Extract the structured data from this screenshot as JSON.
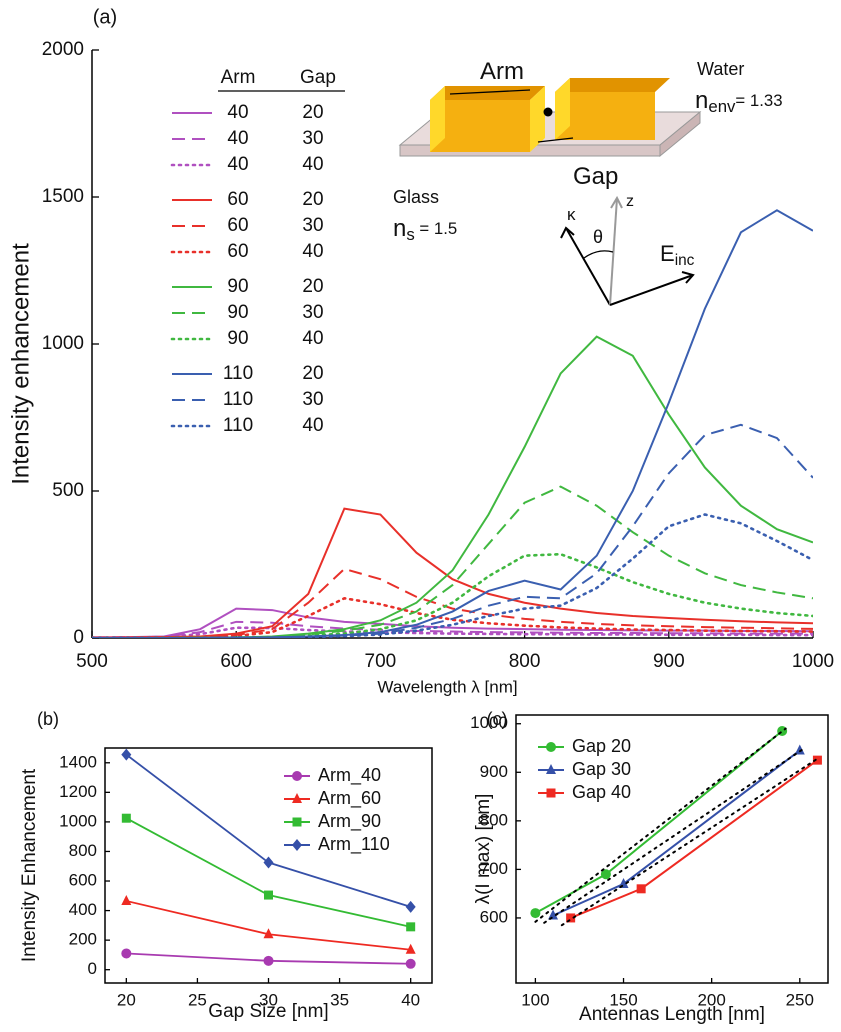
{
  "chart_data": [
    {
      "type": "line",
      "label": "(a)",
      "xlabel": "Wavelength λ [nm]",
      "ylabel": "Intensity enhancement",
      "x": [
        500,
        525,
        550,
        575,
        600,
        625,
        650,
        675,
        700,
        725,
        750,
        775,
        800,
        825,
        850,
        875,
        900,
        925,
        950,
        975,
        1000
      ],
      "xlim": [
        500,
        1000
      ],
      "xticks": [
        500,
        600,
        700,
        800,
        900,
        1000
      ],
      "ylim": [
        0,
        2000
      ],
      "yticks": [
        0,
        500,
        1000,
        1500,
        2000
      ],
      "legend": "upper left",
      "legend_header": [
        "Arm",
        "Gap"
      ],
      "series": [
        {
          "arm": 40,
          "gap": 20,
          "color": "#b050c0",
          "dash": "solid",
          "values": [
            2,
            3,
            5,
            30,
            100,
            95,
            70,
            55,
            48,
            40,
            35,
            32,
            30,
            28,
            27,
            26,
            25,
            25,
            24,
            24,
            23
          ]
        },
        {
          "arm": 40,
          "gap": 30,
          "color": "#b050c0",
          "dash": "dashed",
          "values": [
            2,
            3,
            4,
            20,
            55,
            52,
            40,
            32,
            28,
            24,
            22,
            20,
            19,
            18,
            17,
            17,
            16,
            16,
            15,
            15,
            15
          ]
        },
        {
          "arm": 40,
          "gap": 40,
          "color": "#b050c0",
          "dash": "dotted",
          "values": [
            1,
            2,
            3,
            13,
            35,
            34,
            27,
            22,
            19,
            17,
            15,
            14,
            13,
            13,
            12,
            12,
            11,
            11,
            11,
            10,
            10
          ]
        },
        {
          "arm": 60,
          "gap": 20,
          "color": "#e8302a",
          "dash": "solid",
          "values": [
            1,
            2,
            3,
            5,
            15,
            40,
            150,
            440,
            420,
            290,
            200,
            150,
            120,
            100,
            85,
            75,
            68,
            62,
            57,
            53,
            50
          ]
        },
        {
          "arm": 60,
          "gap": 30,
          "color": "#e8302a",
          "dash": "dashed",
          "values": [
            1,
            1,
            2,
            4,
            10,
            30,
            120,
            235,
            200,
            140,
            100,
            80,
            65,
            55,
            48,
            43,
            40,
            37,
            35,
            33,
            31
          ]
        },
        {
          "arm": 60,
          "gap": 40,
          "color": "#e8302a",
          "dash": "dotted",
          "values": [
            1,
            1,
            2,
            3,
            7,
            20,
            75,
            135,
            115,
            85,
            62,
            50,
            42,
            36,
            32,
            29,
            27,
            25,
            24,
            23,
            22
          ]
        },
        {
          "arm": 90,
          "gap": 20,
          "color": "#40b840",
          "dash": "solid",
          "values": [
            0,
            0,
            0,
            1,
            2,
            5,
            15,
            30,
            60,
            120,
            230,
            420,
            650,
            900,
            1025,
            960,
            760,
            580,
            450,
            370,
            325
          ]
        },
        {
          "arm": 90,
          "gap": 30,
          "color": "#40b840",
          "dash": "dashed",
          "values": [
            0,
            0,
            0,
            1,
            2,
            4,
            12,
            25,
            45,
            90,
            180,
            320,
            460,
            515,
            450,
            360,
            280,
            220,
            180,
            155,
            135
          ]
        },
        {
          "arm": 90,
          "gap": 40,
          "color": "#40b840",
          "dash": "dotted",
          "values": [
            0,
            0,
            0,
            0,
            1,
            3,
            8,
            15,
            30,
            60,
            120,
            210,
            280,
            285,
            240,
            190,
            150,
            120,
            100,
            85,
            75
          ]
        },
        {
          "arm": 110,
          "gap": 20,
          "color": "#3a5fb0",
          "dash": "solid",
          "values": [
            0,
            0,
            0,
            0,
            1,
            2,
            5,
            10,
            20,
            45,
            90,
            160,
            195,
            165,
            280,
            500,
            800,
            1120,
            1380,
            1455,
            1385
          ]
        },
        {
          "arm": 110,
          "gap": 30,
          "color": "#3a5fb0",
          "dash": "dashed",
          "values": [
            0,
            0,
            0,
            0,
            1,
            2,
            4,
            8,
            15,
            35,
            65,
            110,
            140,
            135,
            220,
            380,
            560,
            690,
            725,
            680,
            545
          ]
        },
        {
          "arm": 110,
          "gap": 40,
          "color": "#3a5fb0",
          "dash": "dotted",
          "values": [
            0,
            0,
            0,
            0,
            1,
            1,
            3,
            6,
            12,
            25,
            45,
            75,
            100,
            110,
            170,
            270,
            380,
            420,
            390,
            330,
            265
          ]
        }
      ],
      "annotations": [
        {
          "text": "Arm"
        },
        {
          "text": "Gap"
        },
        {
          "text": "Water"
        },
        {
          "text": "n",
          "sub": "env",
          "after": "= 1.33"
        },
        {
          "text": "Glass"
        },
        {
          "text": "n",
          "sub": "s",
          "after": " = 1.5"
        },
        {
          "text": "κ"
        },
        {
          "text": "θ"
        },
        {
          "text": "z"
        },
        {
          "text": "E",
          "sub": "inc"
        }
      ]
    },
    {
      "type": "line",
      "label": "(b)",
      "xlabel": "Gap Size [nm]",
      "ylabel": "Intensity Enhancement",
      "x": [
        20,
        30,
        40
      ],
      "xlim": [
        18.5,
        41.5
      ],
      "xticks": [
        20,
        25,
        30,
        35,
        40
      ],
      "ylim": [
        -90,
        1500
      ],
      "yticks": [
        0,
        200,
        400,
        600,
        800,
        1000,
        1200,
        1400
      ],
      "legend": "upper right",
      "series": [
        {
          "name": "Arm_40",
          "color": "#a83ab0",
          "marker": "circle",
          "values": [
            110,
            60,
            40
          ]
        },
        {
          "name": "Arm_60",
          "color": "#ee2a22",
          "marker": "triangle",
          "values": [
            465,
            240,
            135
          ]
        },
        {
          "name": "Arm_90",
          "color": "#33bb33",
          "marker": "square",
          "values": [
            1025,
            505,
            290
          ]
        },
        {
          "name": "Arm_110",
          "color": "#3550a8",
          "marker": "diamond",
          "values": [
            1455,
            725,
            425
          ]
        }
      ]
    },
    {
      "type": "line",
      "label": "(c)",
      "xlabel": "Antennas Length [nm]",
      "ylabel": "λ(I max) [nm]",
      "xlim": [
        89,
        266
      ],
      "xticks": [
        100,
        150,
        200,
        250
      ],
      "ylim": [
        466,
        1018
      ],
      "yticks": [
        600,
        700,
        800,
        900,
        1000
      ],
      "legend": "upper left",
      "series": [
        {
          "name": "Gap 20",
          "color": "#33bb33",
          "marker": "circle",
          "x": [
            100,
            140,
            240
          ],
          "values": [
            610,
            690,
            985
          ]
        },
        {
          "name": "Gap 30",
          "color": "#3550a8",
          "marker": "triangle",
          "x": [
            110,
            150,
            250
          ],
          "values": [
            605,
            670,
            945
          ]
        },
        {
          "name": "Gap 40",
          "color": "#ee2a22",
          "marker": "square",
          "x": [
            120,
            160,
            260
          ],
          "values": [
            600,
            660,
            925
          ]
        },
        {
          "color": "#000000",
          "dash": "dotted",
          "x": [
            100,
            242
          ],
          "values": [
            592,
            990
          ]
        },
        {
          "color": "#000000",
          "dash": "dotted",
          "x": [
            105,
            252
          ],
          "values": [
            590,
            948
          ]
        },
        {
          "color": "#000000",
          "dash": "dotted",
          "x": [
            115,
            260
          ],
          "values": [
            585,
            928
          ]
        }
      ]
    }
  ]
}
